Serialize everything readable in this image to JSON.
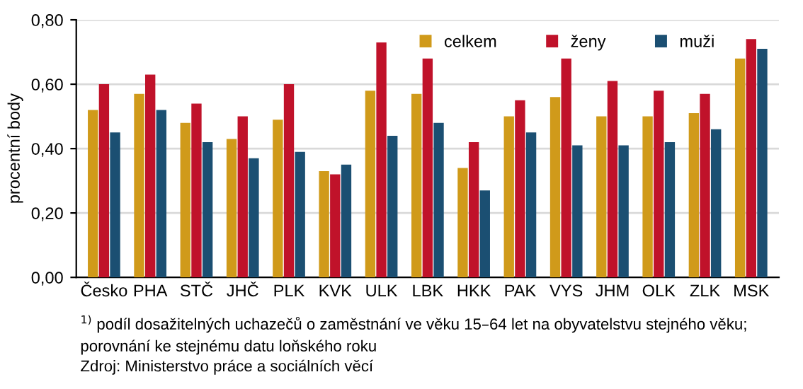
{
  "chart_data": {
    "type": "bar",
    "ylabel": "procentní body",
    "categories": [
      "Česko",
      "PHA",
      "STČ",
      "JHČ",
      "PLK",
      "KVK",
      "ULK",
      "LBK",
      "HKK",
      "PAK",
      "VYS",
      "JHM",
      "OLK",
      "ZLK",
      "MSK"
    ],
    "series": [
      {
        "name": "celkem",
        "color": "#d09a1a",
        "values": [
          0.52,
          0.57,
          0.48,
          0.43,
          0.49,
          0.33,
          0.58,
          0.57,
          0.34,
          0.5,
          0.56,
          0.5,
          0.5,
          0.51,
          0.68
        ]
      },
      {
        "name": "ženy",
        "color": "#c0122a",
        "values": [
          0.6,
          0.63,
          0.54,
          0.5,
          0.6,
          0.32,
          0.73,
          0.68,
          0.42,
          0.55,
          0.68,
          0.61,
          0.58,
          0.57,
          0.74
        ]
      },
      {
        "name": "muži",
        "color": "#1b4f72",
        "values": [
          0.45,
          0.52,
          0.42,
          0.37,
          0.39,
          0.35,
          0.44,
          0.48,
          0.27,
          0.45,
          0.41,
          0.41,
          0.42,
          0.46,
          0.71
        ]
      }
    ],
    "ylim": [
      0,
      0.8
    ],
    "yticks": [
      {
        "value": 0,
        "label": "0,00"
      },
      {
        "value": 0.2,
        "label": "0,20"
      },
      {
        "value": 0.4,
        "label": "0,40"
      },
      {
        "value": 0.6,
        "label": "0,60"
      },
      {
        "value": 0.8,
        "label": "0,80"
      }
    ],
    "grid": "y",
    "legend": "top right",
    "annotations": [
      "$^{1)}$ podíl dosažitelných uchazečů o zaměstnání ve věku 15–64 let na obyvatelstvu stejného věku;\nporovnání ke stejnému datu loňského roku",
      "Zdroj: Ministerstvo práce a sociálních věcí"
    ]
  }
}
